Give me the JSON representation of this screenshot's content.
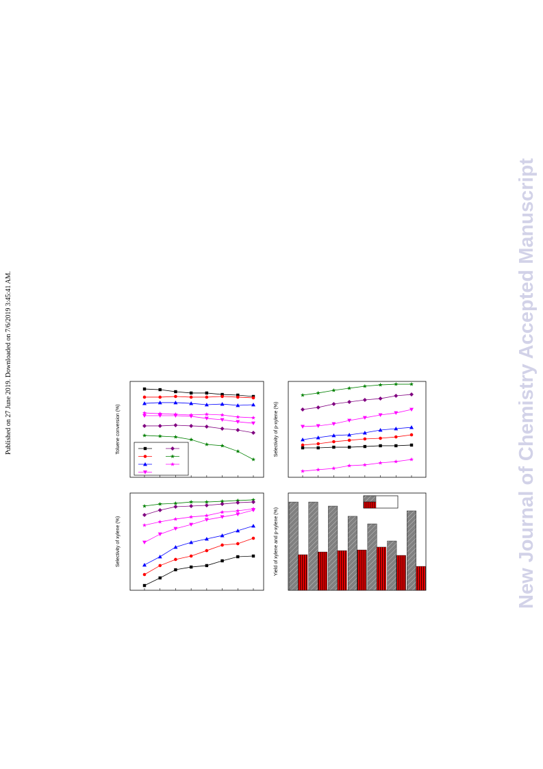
{
  "side_note": "Published on 27 June 2019. Downloaded on 7/6/2019 3:45:41 AM.",
  "watermark": "New Journal of Chemistry Accepted Manuscript",
  "chart_data": [
    {
      "type": "line",
      "y_label": "Toluene conversion (%)",
      "categories": [
        null,
        null,
        null,
        null,
        null,
        null,
        null,
        null
      ],
      "ylim": [
        0,
        100
      ],
      "legend": "lower left",
      "series": [
        {
          "color": "#000000",
          "marker": "square",
          "values": [
            92.1,
            91.4,
            89.3,
            87.9,
            87.9,
            86.4,
            85.7,
            84.3
          ]
        },
        {
          "color": "#ff0000",
          "marker": "circle",
          "values": [
            83.6,
            83.6,
            84.3,
            83.6,
            83.6,
            84.3,
            83.6,
            82.9
          ]
        },
        {
          "color": "#0000ff",
          "marker": "triangle",
          "values": [
            77.1,
            77.9,
            77.9,
            77.1,
            75.7,
            76.4,
            75.0,
            75.7
          ]
        },
        {
          "color": "#ff00ff",
          "marker": "down-triangle",
          "values": [
            64.3,
            64.3,
            64.3,
            63.6,
            61.4,
            60.0,
            57.9,
            56.4
          ]
        },
        {
          "color": "#800080",
          "marker": "diamond",
          "values": [
            53.6,
            53.6,
            54.3,
            53.6,
            52.9,
            50.7,
            49.3,
            46.4
          ]
        },
        {
          "color": "#008000",
          "marker": "star",
          "values": [
            43.6,
            42.9,
            42.1,
            39.3,
            34.3,
            32.9,
            27.1,
            18.6
          ]
        },
        {
          "color": "#ff00ff",
          "marker": "star",
          "values": [
            67.1,
            66.4,
            65.7,
            65.0,
            65.7,
            65.0,
            62.9,
            62.1
          ]
        }
      ]
    },
    {
      "type": "line",
      "y_label": "Selectivity of p-xylene (%)",
      "categories": [
        null,
        null,
        null,
        null,
        null,
        null,
        null,
        null
      ],
      "ylim": [
        0,
        100
      ],
      "series": [
        {
          "color": "#008000",
          "marker": "star",
          "values": [
            85.7,
            87.9,
            90.7,
            92.9,
            95.0,
            96.4,
            97.1,
            97.1
          ]
        },
        {
          "color": "#800080",
          "marker": "diamond",
          "values": [
            70.7,
            72.9,
            76.4,
            78.6,
            80.7,
            82.1,
            85.0,
            86.4
          ]
        },
        {
          "color": "#ff00ff",
          "marker": "down-triangle",
          "values": [
            52.9,
            53.6,
            55.7,
            59.3,
            62.1,
            65.0,
            67.1,
            70.7
          ]
        },
        {
          "color": "#0000ff",
          "marker": "triangle",
          "values": [
            39.3,
            41.4,
            43.6,
            44.3,
            46.4,
            49.3,
            50.7,
            52.1
          ]
        },
        {
          "color": "#ff0000",
          "marker": "circle",
          "values": [
            33.6,
            35.0,
            37.1,
            38.6,
            40.0,
            40.7,
            42.1,
            44.3
          ]
        },
        {
          "color": "#000000",
          "marker": "square",
          "values": [
            30.7,
            30.7,
            31.4,
            31.4,
            32.1,
            32.9,
            32.9,
            33.6
          ]
        },
        {
          "color": "#ff00ff",
          "marker": "star",
          "values": [
            6.4,
            7.9,
            9.3,
            12.1,
            12.9,
            15.0,
            16.4,
            18.6
          ]
        }
      ]
    },
    {
      "type": "line",
      "y_label": "Selectivity of xylene (%)",
      "categories": [
        null,
        null,
        null,
        null,
        null,
        null,
        null,
        null
      ],
      "ylim": [
        0,
        100
      ],
      "series": [
        {
          "color": "#008000",
          "marker": "star",
          "values": [
            86.6,
            88.7,
            89.4,
            90.8,
            90.8,
            91.5,
            92.3,
            93.0
          ]
        },
        {
          "color": "#800080",
          "marker": "diamond",
          "values": [
            77.5,
            82.4,
            85.9,
            86.6,
            87.3,
            88.7,
            90.1,
            90.8
          ]
        },
        {
          "color": "#ff00ff",
          "marker": "star",
          "values": [
            66.9,
            70.4,
            73.2,
            75.4,
            76.8,
            80.3,
            81.7,
            83.8
          ]
        },
        {
          "color": "#ff00ff",
          "marker": "down-triangle",
          "values": [
            49.3,
            57.7,
            63.4,
            67.6,
            72.5,
            75.4,
            78.2,
            82.4
          ]
        },
        {
          "color": "#0000ff",
          "marker": "triangle",
          "values": [
            26.1,
            34.5,
            44.4,
            49.3,
            52.8,
            56.3,
            61.3,
            66.2
          ]
        },
        {
          "color": "#ff0000",
          "marker": "circle",
          "values": [
            16.2,
            25.4,
            31.7,
            35.2,
            40.8,
            46.5,
            47.9,
            53.5
          ]
        },
        {
          "color": "#000000",
          "marker": "square",
          "values": [
            4.9,
            12.7,
            21.1,
            23.9,
            25.4,
            30.3,
            34.5,
            35.2
          ]
        }
      ]
    },
    {
      "type": "bar",
      "y_label": "Yield of xylene and p-xylene (%)",
      "categories": [
        null,
        null,
        null,
        null,
        null,
        null,
        null
      ],
      "ylim": [
        0,
        100
      ],
      "legend": "upper right",
      "series": [
        {
          "color": "#808080",
          "values": [
            90.8,
            90.8,
            86.6,
            76.1,
            68.3,
            50.7,
            81.7
          ]
        },
        {
          "color": "#e00000",
          "values": [
            36.6,
            39.4,
            40.8,
            41.5,
            44.4,
            35.9,
            24.6
          ]
        }
      ]
    }
  ]
}
